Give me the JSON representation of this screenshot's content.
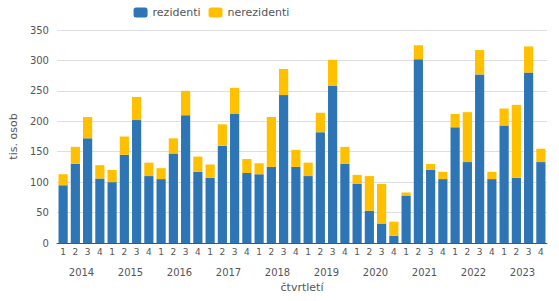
{
  "chart_data": {
    "type": "bar",
    "stacked": true,
    "xlabel": "čtvrtletí",
    "ylabel": "tis. osob",
    "categories": [
      "1",
      "2",
      "3",
      "4",
      "1",
      "2",
      "3",
      "4",
      "1",
      "2",
      "3",
      "4",
      "1",
      "2",
      "3",
      "4",
      "1",
      "2",
      "3",
      "4",
      "1",
      "2",
      "3",
      "4",
      "1",
      "2",
      "3",
      "4",
      "1",
      "2",
      "3",
      "4",
      "1",
      "2",
      "3",
      "4",
      "1",
      "2",
      "3",
      "4"
    ],
    "years": [
      2014,
      2014,
      2014,
      2014,
      2015,
      2015,
      2015,
      2015,
      2016,
      2016,
      2016,
      2016,
      2017,
      2017,
      2017,
      2017,
      2018,
      2018,
      2018,
      2018,
      2019,
      2019,
      2019,
      2019,
      2020,
      2020,
      2020,
      2020,
      2021,
      2021,
      2021,
      2021,
      2022,
      2022,
      2022,
      2022,
      2023,
      2023,
      2023,
      2023
    ],
    "series": [
      {
        "name": "rezidenti",
        "color": "#2E75B6",
        "values": [
          95,
          130,
          172,
          106,
          100,
          145,
          202,
          110,
          105,
          147,
          210,
          117,
          107,
          160,
          212,
          115,
          113,
          125,
          243,
          125,
          110,
          182,
          258,
          130,
          97,
          53,
          32,
          12,
          78,
          302,
          120,
          105,
          190,
          133,
          277,
          105,
          193,
          107,
          280,
          133
        ]
      },
      {
        "name": "nerezidenti",
        "color": "#FFC000",
        "values": [
          18,
          28,
          35,
          22,
          20,
          30,
          38,
          22,
          18,
          25,
          40,
          25,
          22,
          35,
          43,
          23,
          18,
          82,
          43,
          28,
          22,
          32,
          43,
          28,
          15,
          57,
          65,
          23,
          5,
          23,
          10,
          12,
          22,
          82,
          40,
          12,
          28,
          120,
          43,
          22
        ]
      }
    ],
    "ylim": [
      0,
      350
    ],
    "yticks": [
      0,
      50,
      100,
      150,
      200,
      250,
      300,
      350
    ],
    "grid": true,
    "legend": "upper left"
  }
}
